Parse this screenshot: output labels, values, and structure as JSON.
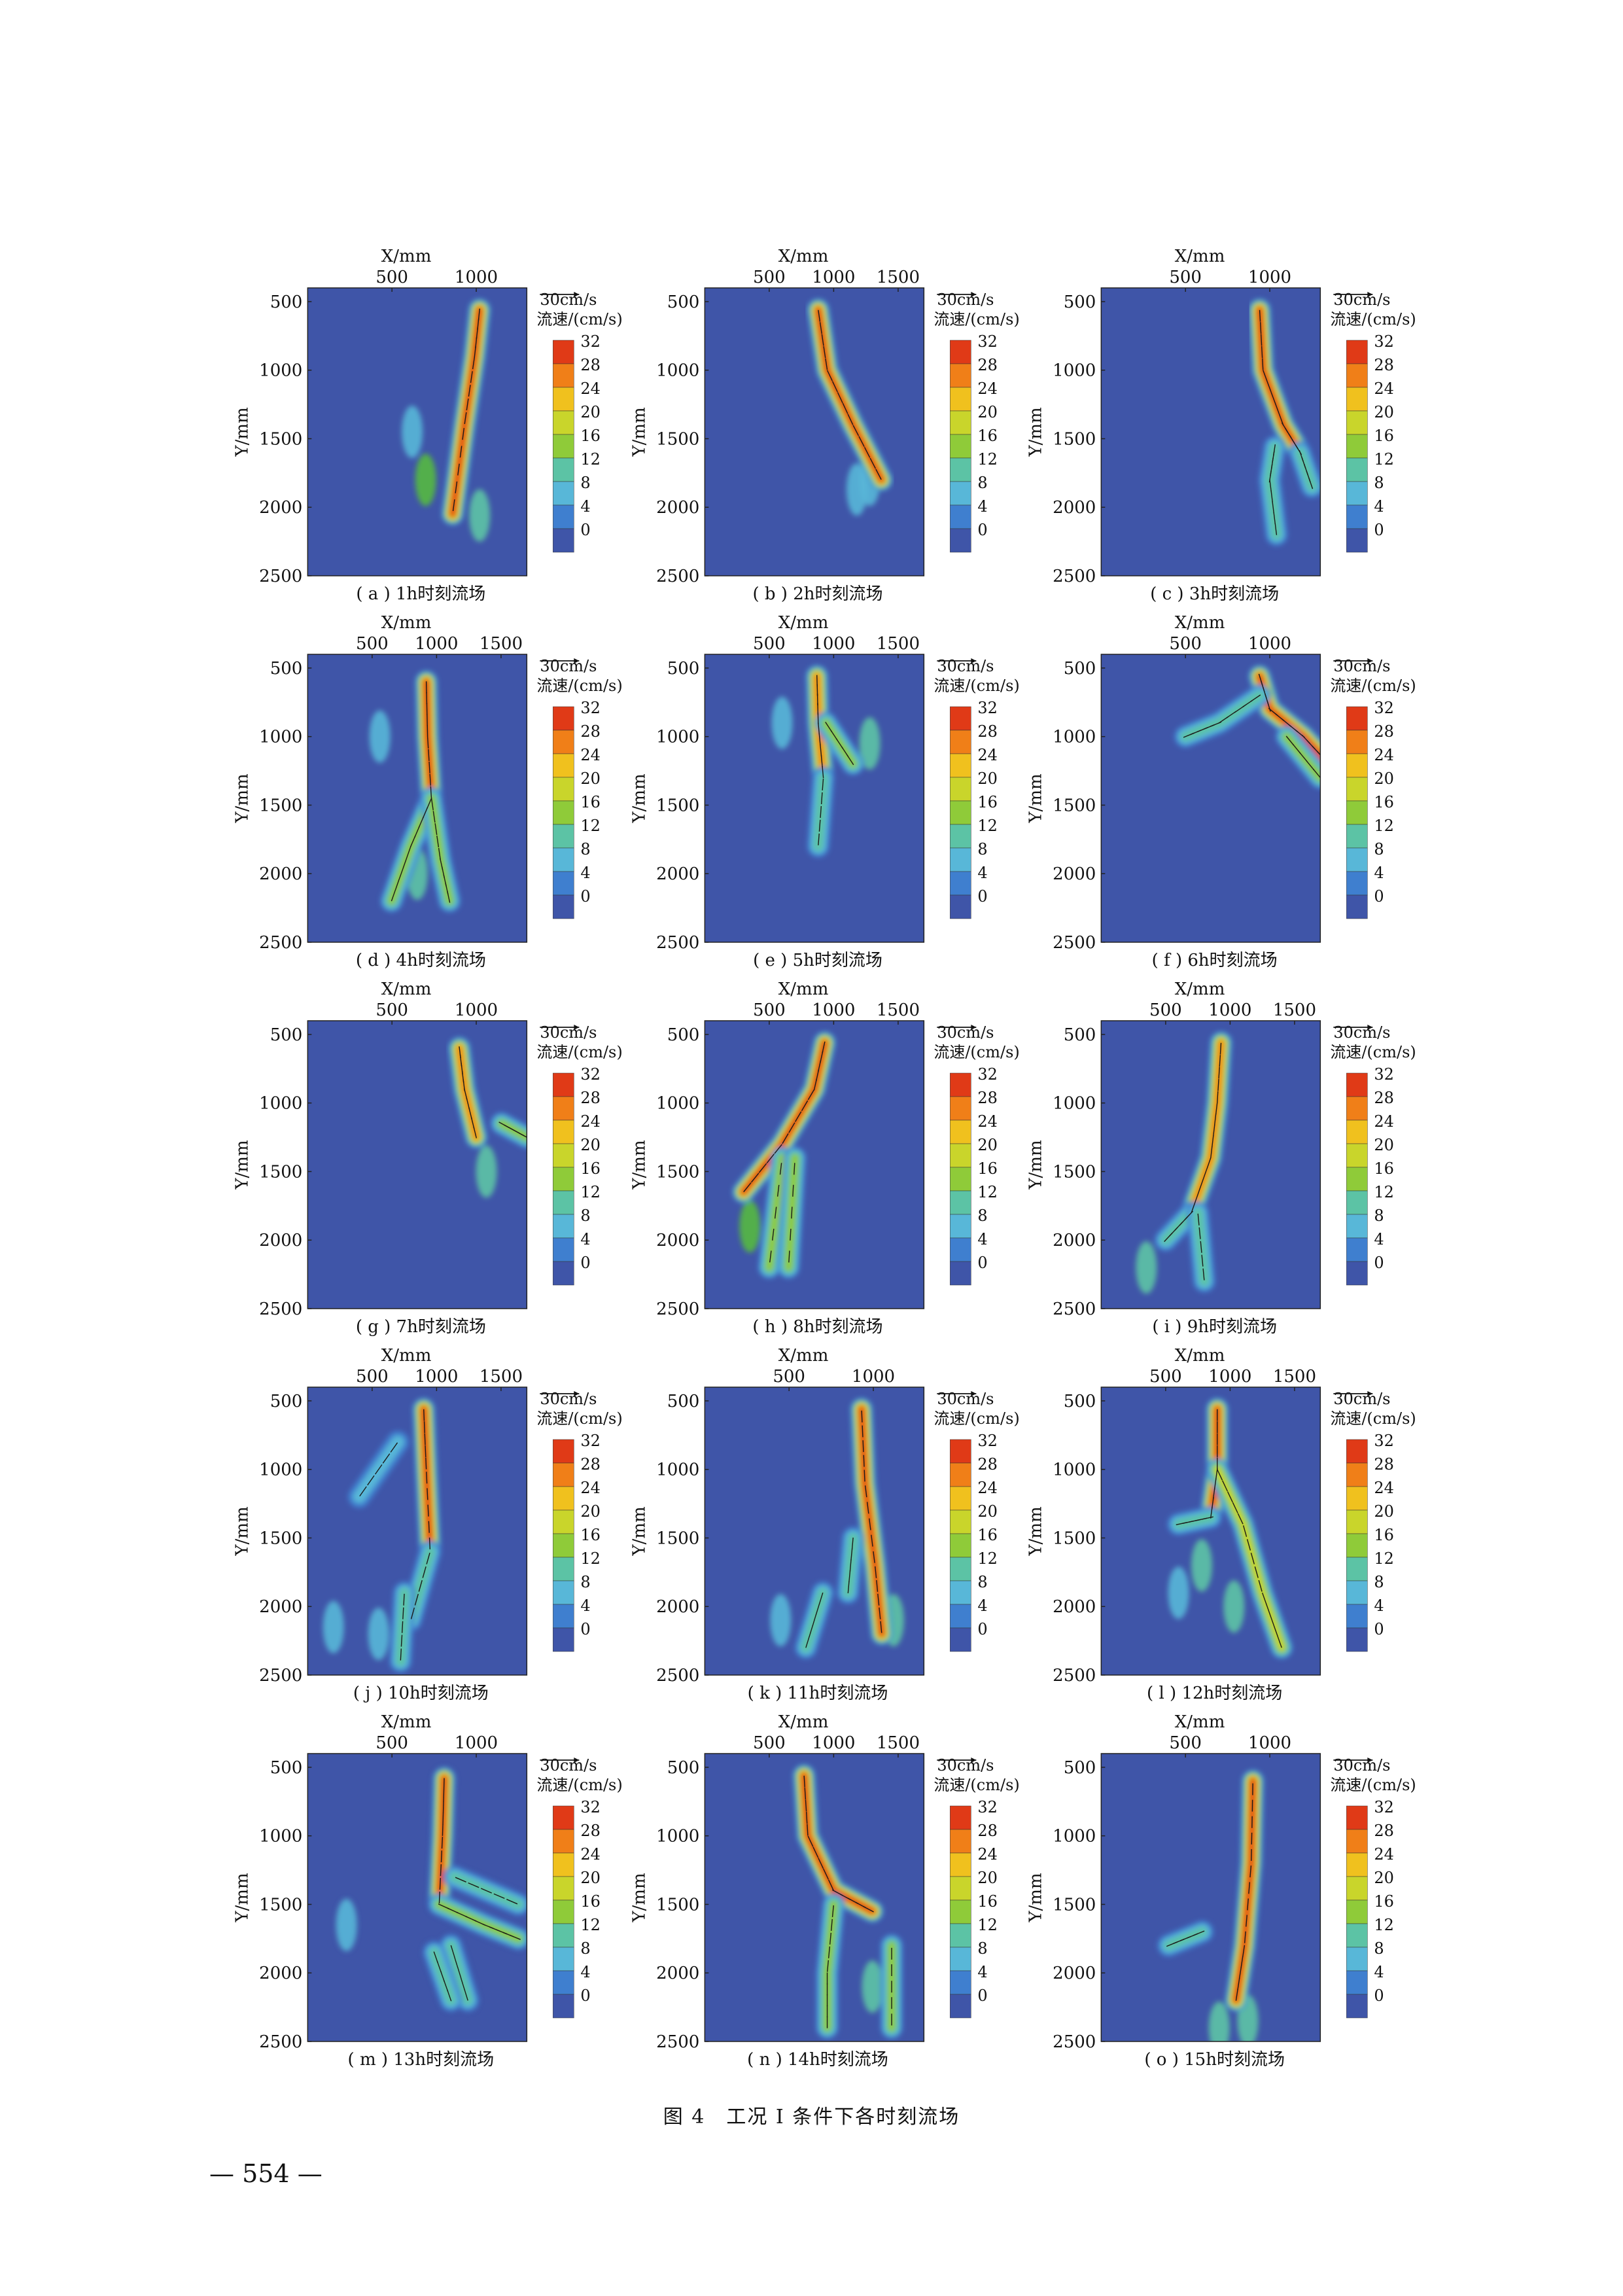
{
  "figure": {
    "caption": "图 4　工况 I 条件下各时刻流场",
    "page_number": "— 554 —"
  },
  "common": {
    "xlabel": "X/mm",
    "ylabel": "Y/mm",
    "vector_ref": "30cm/s",
    "colorbar_title": "流速/(cm/s)",
    "colorbar_ticks": [
      "32",
      "28",
      "24",
      "20",
      "16",
      "12",
      "8",
      "4",
      "0"
    ],
    "y_ticks": [
      "500",
      "1000",
      "1500",
      "2000",
      "2500"
    ],
    "x_ticks_short": [
      "500",
      "1000"
    ],
    "x_ticks_long": [
      "500",
      "1000",
      "1500"
    ],
    "colors": {
      "background": "#3f55a8",
      "scale": [
        "#3f55a8",
        "#3f7fcf",
        "#58b7d8",
        "#5cc3a5",
        "#55b941",
        "#8fcb39",
        "#c9d52b",
        "#f0c11e",
        "#f07f18",
        "#e03a17"
      ]
    }
  },
  "chart_data": [
    {
      "panel": "a",
      "caption": "( a ) 1h时刻流场",
      "type": "heatmap",
      "xlim": [
        0,
        1300
      ],
      "xtick_set": "short",
      "ylim": [
        2500,
        500
      ],
      "branches": [
        {
          "points": [
            [
              1020,
              560
            ],
            [
              990,
              900
            ],
            [
              930,
              1400
            ],
            [
              860,
              2050
            ]
          ],
          "peak_velocity": 32
        }
      ],
      "patches": [
        [
          700,
          1800,
          14
        ],
        [
          1020,
          2060,
          10
        ],
        [
          620,
          1450,
          8
        ]
      ]
    },
    {
      "panel": "b",
      "caption": "( b ) 2h时刻流场",
      "type": "heatmap",
      "xlim": [
        0,
        1700
      ],
      "xtick_set": "long",
      "ylim": [
        2500,
        500
      ],
      "branches": [
        {
          "points": [
            [
              880,
              560
            ],
            [
              950,
              1000
            ],
            [
              1150,
              1400
            ],
            [
              1370,
              1800
            ]
          ],
          "peak_velocity": 32
        }
      ],
      "patches": [
        [
          1280,
          1800,
          8
        ],
        [
          1180,
          1870,
          6
        ]
      ]
    },
    {
      "panel": "c",
      "caption": "( c ) 3h时刻流场",
      "type": "heatmap",
      "xlim": [
        0,
        1300
      ],
      "xtick_set": "short",
      "ylim": [
        2500,
        500
      ],
      "branches": [
        {
          "points": [
            [
              940,
              560
            ],
            [
              960,
              1000
            ],
            [
              1080,
              1400
            ],
            [
              1180,
              1600
            ]
          ],
          "peak_velocity": 32
        },
        {
          "points": [
            [
              1030,
              1560
            ],
            [
              1000,
              1800
            ],
            [
              1040,
              2200
            ]
          ],
          "peak_velocity": 14
        },
        {
          "points": [
            [
              1180,
              1600
            ],
            [
              1250,
              1850
            ]
          ],
          "peak_velocity": 14
        }
      ],
      "patches": []
    },
    {
      "panel": "d",
      "caption": "( d ) 4h时刻流场",
      "type": "heatmap",
      "xlim": [
        0,
        1700
      ],
      "xtick_set": "long",
      "ylim": [
        2500,
        500
      ],
      "branches": [
        {
          "points": [
            [
              920,
              600
            ],
            [
              930,
              1000
            ],
            [
              960,
              1450
            ]
          ],
          "peak_velocity": 32
        },
        {
          "points": [
            [
              960,
              1450
            ],
            [
              800,
              1800
            ],
            [
              650,
              2200
            ]
          ],
          "peak_velocity": 16
        },
        {
          "points": [
            [
              960,
              1450
            ],
            [
              1030,
              1900
            ],
            [
              1100,
              2200
            ]
          ],
          "peak_velocity": 16
        }
      ],
      "patches": [
        [
          850,
          2000,
          10
        ],
        [
          560,
          1000,
          6
        ]
      ]
    },
    {
      "panel": "e",
      "caption": "( e ) 5h时刻流场",
      "type": "heatmap",
      "xlim": [
        0,
        1700
      ],
      "xtick_set": "long",
      "ylim": [
        2500,
        500
      ],
      "branches": [
        {
          "points": [
            [
              870,
              560
            ],
            [
              880,
              900
            ],
            [
              920,
              1300
            ]
          ],
          "peak_velocity": 30
        },
        {
          "points": [
            [
              940,
              900
            ],
            [
              1150,
              1200
            ]
          ],
          "peak_velocity": 18
        },
        {
          "points": [
            [
              920,
              1300
            ],
            [
              880,
              1800
            ]
          ],
          "peak_velocity": 12
        }
      ],
      "patches": [
        [
          600,
          900,
          8
        ],
        [
          1280,
          1050,
          10
        ]
      ]
    },
    {
      "panel": "f",
      "caption": "( f ) 6h时刻流场",
      "type": "heatmap",
      "xlim": [
        0,
        1300
      ],
      "xtick_set": "short",
      "ylim": [
        2500,
        500
      ],
      "branches": [
        {
          "points": [
            [
              940,
              560
            ],
            [
              1000,
              800
            ],
            [
              1200,
              1000
            ],
            [
              1350,
              1200
            ]
          ],
          "peak_velocity": 32
        },
        {
          "points": [
            [
              940,
              700
            ],
            [
              700,
              900
            ],
            [
              500,
              1000
            ]
          ],
          "peak_velocity": 12
        },
        {
          "points": [
            [
              1100,
              1000
            ],
            [
              1300,
              1300
            ]
          ],
          "peak_velocity": 18
        }
      ],
      "patches": []
    },
    {
      "panel": "g",
      "caption": "( g ) 7h时刻流场",
      "type": "heatmap",
      "xlim": [
        0,
        1300
      ],
      "xtick_set": "short",
      "ylim": [
        2500,
        500
      ],
      "branches": [
        {
          "points": [
            [
              900,
              600
            ],
            [
              930,
              900
            ],
            [
              1000,
              1250
            ]
          ],
          "peak_velocity": 30
        },
        {
          "points": [
            [
              1150,
              1150
            ],
            [
              1300,
              1250
            ]
          ],
          "peak_velocity": 18
        }
      ],
      "patches": [
        [
          1060,
          1500,
          10
        ]
      ]
    },
    {
      "panel": "h",
      "caption": "( h ) 8h时刻流场",
      "type": "heatmap",
      "xlim": [
        0,
        1700
      ],
      "xtick_set": "long",
      "ylim": [
        2500,
        500
      ],
      "branches": [
        {
          "points": [
            [
              930,
              560
            ],
            [
              850,
              900
            ],
            [
              600,
              1300
            ],
            [
              300,
              1650
            ]
          ],
          "peak_velocity": 32
        },
        {
          "points": [
            [
              600,
              1400
            ],
            [
              500,
              2200
            ]
          ],
          "peak_velocity": 16
        },
        {
          "points": [
            [
              700,
              1400
            ],
            [
              650,
              2200
            ]
          ],
          "peak_velocity": 16
        }
      ],
      "patches": [
        [
          350,
          1900,
          14
        ]
      ]
    },
    {
      "panel": "i",
      "caption": "( i ) 9h时刻流场",
      "type": "heatmap",
      "xlim": [
        0,
        1700
      ],
      "xtick_set": "long",
      "ylim": [
        2500,
        500
      ],
      "branches": [
        {
          "points": [
            [
              930,
              560
            ],
            [
              900,
              1000
            ],
            [
              850,
              1400
            ],
            [
              700,
              1800
            ]
          ],
          "peak_velocity": 30
        },
        {
          "points": [
            [
              700,
              1800
            ],
            [
              500,
              2000
            ]
          ],
          "peak_velocity": 14
        },
        {
          "points": [
            [
              750,
              1800
            ],
            [
              800,
              2300
            ]
          ],
          "peak_velocity": 14
        }
      ],
      "patches": [
        [
          350,
          2200,
          10
        ]
      ]
    },
    {
      "panel": "j",
      "caption": "( j ) 10h时刻流场",
      "type": "heatmap",
      "xlim": [
        0,
        1700
      ],
      "xtick_set": "long",
      "ylim": [
        2500,
        500
      ],
      "branches": [
        {
          "points": [
            [
              900,
              560
            ],
            [
              920,
              1000
            ],
            [
              950,
              1600
            ]
          ],
          "peak_velocity": 32
        },
        {
          "points": [
            [
              700,
              800
            ],
            [
              400,
              1200
            ]
          ],
          "peak_velocity": 10
        },
        {
          "points": [
            [
              950,
              1600
            ],
            [
              800,
              2100
            ]
          ],
          "peak_velocity": 14
        },
        {
          "points": [
            [
              750,
              1900
            ],
            [
              720,
              2400
            ]
          ],
          "peak_velocity": 12
        }
      ],
      "patches": [
        [
          200,
          2150,
          8
        ],
        [
          550,
          2200,
          8
        ]
      ]
    },
    {
      "panel": "k",
      "caption": "( k ) 11h时刻流场",
      "type": "heatmap",
      "xlim": [
        0,
        1300
      ],
      "xtick_set": "short",
      "ylim": [
        2500,
        500
      ],
      "branches": [
        {
          "points": [
            [
              930,
              560
            ],
            [
              950,
              1100
            ],
            [
              1010,
              1700
            ],
            [
              1050,
              2200
            ]
          ],
          "peak_velocity": 32
        },
        {
          "points": [
            [
              880,
              1500
            ],
            [
              850,
              1900
            ]
          ],
          "peak_velocity": 14
        },
        {
          "points": [
            [
              700,
              1900
            ],
            [
              600,
              2300
            ]
          ],
          "peak_velocity": 14
        }
      ],
      "patches": [
        [
          1120,
          2100,
          10
        ],
        [
          450,
          2100,
          8
        ]
      ]
    },
    {
      "panel": "l",
      "caption": "( l ) 12h时刻流场",
      "type": "heatmap",
      "xlim": [
        0,
        1700
      ],
      "xtick_set": "long",
      "ylim": [
        2500,
        500
      ],
      "branches": [
        {
          "points": [
            [
              900,
              560
            ],
            [
              900,
              1000
            ],
            [
              850,
              1350
            ]
          ],
          "peak_velocity": 32
        },
        {
          "points": [
            [
              900,
              1000
            ],
            [
              1100,
              1400
            ],
            [
              1250,
              1900
            ],
            [
              1400,
              2300
            ]
          ],
          "peak_velocity": 20
        },
        {
          "points": [
            [
              850,
              1350
            ],
            [
              600,
              1400
            ]
          ],
          "peak_velocity": 12
        }
      ],
      "patches": [
        [
          780,
          1700,
          10
        ],
        [
          1030,
          2000,
          10
        ],
        [
          600,
          1900,
          8
        ]
      ]
    },
    {
      "panel": "m",
      "caption": "( m ) 13h时刻流场",
      "type": "heatmap",
      "xlim": [
        0,
        1300
      ],
      "xtick_set": "short",
      "ylim": [
        2500,
        500
      ],
      "branches": [
        {
          "points": [
            [
              810,
              580
            ],
            [
              800,
              1000
            ],
            [
              780,
              1500
            ]
          ],
          "peak_velocity": 32
        },
        {
          "points": [
            [
              780,
              1500
            ],
            [
              1050,
              1650
            ],
            [
              1250,
              1750
            ]
          ],
          "peak_velocity": 18
        },
        {
          "points": [
            [
              870,
              1300
            ],
            [
              1250,
              1500
            ]
          ],
          "peak_velocity": 14
        },
        {
          "points": [
            [
              850,
              1800
            ],
            [
              950,
              2200
            ]
          ],
          "peak_velocity": 14
        },
        {
          "points": [
            [
              750,
              1850
            ],
            [
              850,
              2200
            ]
          ],
          "peak_velocity": 14
        }
      ],
      "patches": [
        [
          230,
          1650,
          6
        ]
      ]
    },
    {
      "panel": "n",
      "caption": "( n ) 14h时刻流场",
      "type": "heatmap",
      "xlim": [
        0,
        1700
      ],
      "xtick_set": "long",
      "ylim": [
        2500,
        500
      ],
      "branches": [
        {
          "points": [
            [
              770,
              560
            ],
            [
              800,
              1000
            ],
            [
              1000,
              1400
            ],
            [
              1300,
              1550
            ]
          ],
          "peak_velocity": 32
        },
        {
          "points": [
            [
              1000,
              1500
            ],
            [
              950,
              2000
            ],
            [
              950,
              2400
            ]
          ],
          "peak_velocity": 16
        },
        {
          "points": [
            [
              1450,
              1800
            ],
            [
              1450,
              2400
            ]
          ],
          "peak_velocity": 16
        }
      ],
      "patches": [
        [
          1300,
          2100,
          10
        ]
      ]
    },
    {
      "panel": "o",
      "caption": "( o ) 15h时刻流场",
      "type": "heatmap",
      "xlim": [
        0,
        1300
      ],
      "xtick_set": "short",
      "ylim": [
        2500,
        500
      ],
      "branches": [
        {
          "points": [
            [
              900,
              600
            ],
            [
              890,
              1200
            ],
            [
              850,
              1800
            ],
            [
              800,
              2200
            ]
          ],
          "peak_velocity": 32
        },
        {
          "points": [
            [
              600,
              1700
            ],
            [
              400,
              1800
            ]
          ],
          "peak_velocity": 12
        }
      ],
      "patches": [
        [
          700,
          2400,
          10
        ],
        [
          870,
          2350,
          10
        ]
      ]
    }
  ]
}
